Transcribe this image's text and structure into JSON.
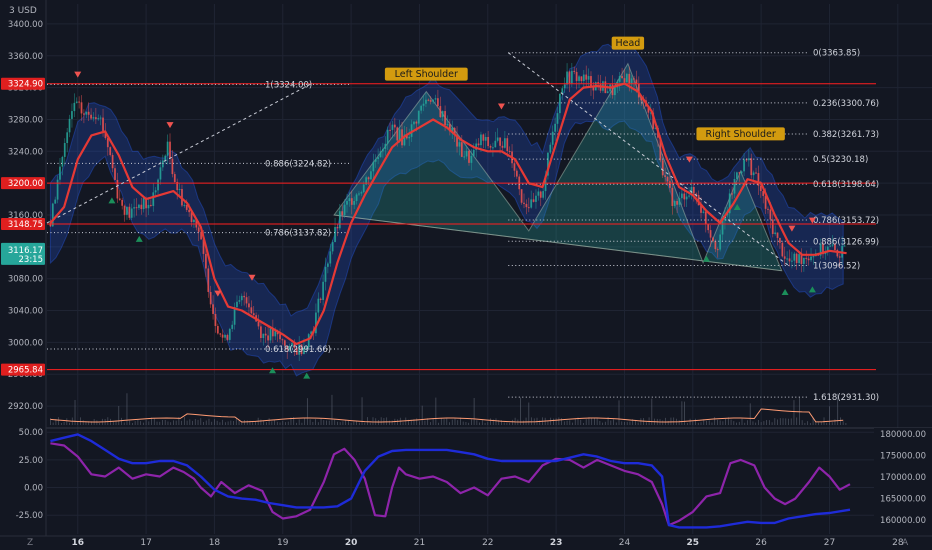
{
  "header": {
    "currency": "USD"
  },
  "colors": {
    "background": "#131722",
    "grid": "#1f2433",
    "candle_up": "#26a69a",
    "candle_down": "#ef5350",
    "ma": "#e53935",
    "band": "#2962ff",
    "hline": "#ff1f1f",
    "fib": "#c9ccd6",
    "volume": "#6a7180",
    "volume_ma": "#ff9b73",
    "osc_purple": "#8e24aa",
    "osc_blue": "#1e2bd8",
    "label_bg": "#d39b0f",
    "price_label_bg": "#e01f1f",
    "current_bg": "#26a69a"
  },
  "chart_data": [
    {
      "type": "candlestick",
      "x_ticks": [
        "16",
        "17",
        "18",
        "19",
        "20",
        "21",
        "22",
        "23",
        "24",
        "25",
        "26",
        "27",
        "28"
      ],
      "bold_x_ticks": [
        "16",
        "20",
        "23",
        "25"
      ],
      "xlim": [
        15.55,
        28.5
      ],
      "ylim": [
        2895,
        3425
      ],
      "y_ticks": [
        "3400.00",
        "3360.00",
        "3320.00",
        "3280.00",
        "3240.00",
        "3200.00",
        "3160.00",
        "3120.00",
        "3080.00",
        "3040.00",
        "3000.00",
        "2960.00",
        "2920.00"
      ],
      "close_path": [
        [
          15.6,
          3150
        ],
        [
          15.75,
          3225
        ],
        [
          15.95,
          3300
        ],
        [
          16.1,
          3285
        ],
        [
          16.3,
          3290
        ],
        [
          16.45,
          3245
        ],
        [
          16.6,
          3180
        ],
        [
          16.75,
          3160
        ],
        [
          16.9,
          3175
        ],
        [
          17.05,
          3170
        ],
        [
          17.2,
          3210
        ],
        [
          17.3,
          3250
        ],
        [
          17.45,
          3195
        ],
        [
          17.6,
          3165
        ],
        [
          17.75,
          3150
        ],
        [
          17.85,
          3100
        ],
        [
          18.0,
          3030
        ],
        [
          18.15,
          3000
        ],
        [
          18.3,
          3040
        ],
        [
          18.45,
          3060
        ],
        [
          18.55,
          3040
        ],
        [
          18.7,
          3010
        ],
        [
          18.85,
          3010
        ],
        [
          19.0,
          3000
        ],
        [
          19.15,
          2990
        ],
        [
          19.3,
          2995
        ],
        [
          19.45,
          3020
        ],
        [
          19.55,
          3060
        ],
        [
          19.7,
          3120
        ],
        [
          19.85,
          3160
        ],
        [
          20.0,
          3180
        ],
        [
          20.2,
          3200
        ],
        [
          20.4,
          3240
        ],
        [
          20.6,
          3270
        ],
        [
          20.75,
          3255
        ],
        [
          20.9,
          3270
        ],
        [
          21.05,
          3300
        ],
        [
          21.15,
          3310
        ],
        [
          21.3,
          3290
        ],
        [
          21.45,
          3270
        ],
        [
          21.6,
          3240
        ],
        [
          21.75,
          3230
        ],
        [
          21.9,
          3255
        ],
        [
          22.05,
          3245
        ],
        [
          22.2,
          3255
        ],
        [
          22.35,
          3235
        ],
        [
          22.5,
          3180
        ],
        [
          22.65,
          3170
        ],
        [
          22.8,
          3190
        ],
        [
          22.95,
          3265
        ],
        [
          23.1,
          3330
        ],
        [
          23.25,
          3335
        ],
        [
          23.4,
          3330
        ],
        [
          23.55,
          3325
        ],
        [
          23.7,
          3320
        ],
        [
          23.85,
          3315
        ],
        [
          24.0,
          3335
        ],
        [
          24.15,
          3325
        ],
        [
          24.3,
          3300
        ],
        [
          24.45,
          3270
        ],
        [
          24.6,
          3200
        ],
        [
          24.75,
          3170
        ],
        [
          24.9,
          3190
        ],
        [
          25.05,
          3185
        ],
        [
          25.2,
          3150
        ],
        [
          25.35,
          3120
        ],
        [
          25.5,
          3165
        ],
        [
          25.65,
          3215
        ],
        [
          25.8,
          3230
        ],
        [
          25.95,
          3200
        ],
        [
          26.1,
          3160
        ],
        [
          26.25,
          3125
        ],
        [
          26.4,
          3100
        ],
        [
          26.55,
          3105
        ],
        [
          26.7,
          3110
        ],
        [
          26.85,
          3115
        ],
        [
          27.0,
          3118
        ],
        [
          27.15,
          3112
        ],
        [
          27.25,
          3115
        ]
      ],
      "moving_average": [
        [
          15.6,
          3150
        ],
        [
          15.8,
          3170
        ],
        [
          16.0,
          3230
        ],
        [
          16.2,
          3260
        ],
        [
          16.4,
          3265
        ],
        [
          16.6,
          3235
        ],
        [
          16.8,
          3195
        ],
        [
          17.0,
          3180
        ],
        [
          17.2,
          3185
        ],
        [
          17.4,
          3190
        ],
        [
          17.6,
          3175
        ],
        [
          17.8,
          3145
        ],
        [
          18.0,
          3080
        ],
        [
          18.2,
          3045
        ],
        [
          18.4,
          3040
        ],
        [
          18.6,
          3030
        ],
        [
          18.8,
          3020
        ],
        [
          19.0,
          3010
        ],
        [
          19.2,
          2998
        ],
        [
          19.4,
          3005
        ],
        [
          19.6,
          3040
        ],
        [
          19.8,
          3100
        ],
        [
          20.0,
          3150
        ],
        [
          20.2,
          3185
        ],
        [
          20.4,
          3215
        ],
        [
          20.6,
          3245
        ],
        [
          20.8,
          3260
        ],
        [
          21.0,
          3270
        ],
        [
          21.2,
          3280
        ],
        [
          21.4,
          3270
        ],
        [
          21.6,
          3255
        ],
        [
          21.8,
          3245
        ],
        [
          22.0,
          3240
        ],
        [
          22.2,
          3240
        ],
        [
          22.4,
          3230
        ],
        [
          22.6,
          3200
        ],
        [
          22.8,
          3195
        ],
        [
          23.0,
          3250
        ],
        [
          23.2,
          3305
        ],
        [
          23.4,
          3320
        ],
        [
          23.6,
          3322
        ],
        [
          23.8,
          3320
        ],
        [
          24.0,
          3325
        ],
        [
          24.2,
          3315
        ],
        [
          24.4,
          3290
        ],
        [
          24.6,
          3235
        ],
        [
          24.8,
          3195
        ],
        [
          25.0,
          3185
        ],
        [
          25.2,
          3165
        ],
        [
          25.4,
          3150
        ],
        [
          25.6,
          3175
        ],
        [
          25.8,
          3205
        ],
        [
          26.0,
          3200
        ],
        [
          26.2,
          3160
        ],
        [
          26.4,
          3125
        ],
        [
          26.6,
          3110
        ],
        [
          26.8,
          3110
        ],
        [
          27.0,
          3115
        ],
        [
          27.25,
          3112
        ]
      ],
      "horizontal_levels": [
        3324.9,
        3200.0,
        3148.75,
        2965.84
      ],
      "price_labels": [
        {
          "value": 3324.9,
          "text": "3324.90"
        },
        {
          "value": 3200.0,
          "text": "3200.00"
        },
        {
          "value": 3148.75,
          "text": "3148.75"
        },
        {
          "value": 2965.84,
          "text": "2965.84"
        }
      ],
      "current_price": {
        "value": 3116.17,
        "text": "3116.17",
        "countdown": "23:15"
      },
      "fib_retracement_left": {
        "x_range": [
          15.55,
          20.0
        ],
        "levels": [
          {
            "label": "1(3324.00)",
            "value": 3324.0
          },
          {
            "label": "0.886(3224.82)",
            "value": 3224.82
          },
          {
            "label": "0.786(3137.82)",
            "value": 3137.82
          },
          {
            "label": "0.618(2991.66)",
            "value": 2991.66
          }
        ]
      },
      "fib_retracement_right": {
        "x_range": [
          22.3,
          26.7
        ],
        "levels": [
          {
            "label": "0(3363.85)",
            "value": 3363.85
          },
          {
            "label": "0.236(3300.76)",
            "value": 3300.76
          },
          {
            "label": "0.382(3261.73)",
            "value": 3261.73
          },
          {
            "label": "0.5(3230.18)",
            "value": 3230.18
          },
          {
            "label": "0.618(3198.64)",
            "value": 3198.64
          },
          {
            "label": "0.786(3153.72)",
            "value": 3153.72
          },
          {
            "label": "0.886(3126.99)",
            "value": 3126.99
          },
          {
            "label": "1(3096.52)",
            "value": 3096.52
          },
          {
            "label": "1.618(2931.30)",
            "value": 2931.3
          }
        ]
      },
      "annotations": [
        {
          "text": "Left Shoulder",
          "x": 21.1,
          "y": 3330
        },
        {
          "text": "Head",
          "x": 24.05,
          "y": 3369
        },
        {
          "text": "Right Shoulder",
          "x": 25.7,
          "y": 3255
        }
      ],
      "head_shoulders_polygon": [
        [
          19.75,
          3160
        ],
        [
          21.1,
          3315
        ],
        [
          22.6,
          3140
        ],
        [
          24.05,
          3350
        ],
        [
          25.15,
          3100
        ],
        [
          25.7,
          3215
        ],
        [
          26.3,
          3090
        ]
      ],
      "sell_signals": [
        16.0,
        17.35,
        18.05,
        18.55,
        22.2,
        24.95,
        26.45,
        26.75
      ],
      "buy_signals": [
        16.5,
        16.9,
        18.85,
        19.35,
        25.2,
        25.65,
        26.35,
        26.75
      ]
    },
    {
      "type": "line",
      "name": "oscillator",
      "ylim": [
        -42,
        52
      ],
      "y_ticks": [
        "50.00",
        "25.00",
        "0.00",
        "-25.00"
      ],
      "right_ticks": [
        "180000.00",
        "175000.00",
        "170000.00",
        "165000.00",
        "160000.00"
      ],
      "purple": [
        [
          15.6,
          40
        ],
        [
          15.8,
          38
        ],
        [
          16.0,
          28
        ],
        [
          16.2,
          12
        ],
        [
          16.4,
          10
        ],
        [
          16.6,
          18
        ],
        [
          16.8,
          8
        ],
        [
          17.0,
          12
        ],
        [
          17.2,
          10
        ],
        [
          17.4,
          18
        ],
        [
          17.55,
          14
        ],
        [
          17.7,
          8
        ],
        [
          17.8,
          0
        ],
        [
          17.95,
          -8
        ],
        [
          18.1,
          5
        ],
        [
          18.3,
          -5
        ],
        [
          18.5,
          2
        ],
        [
          18.7,
          -3
        ],
        [
          18.85,
          -22
        ],
        [
          19.0,
          -28
        ],
        [
          19.2,
          -26
        ],
        [
          19.4,
          -20
        ],
        [
          19.6,
          5
        ],
        [
          19.75,
          30
        ],
        [
          19.9,
          35
        ],
        [
          20.05,
          25
        ],
        [
          20.2,
          8
        ],
        [
          20.35,
          -25
        ],
        [
          20.5,
          -26
        ],
        [
          20.6,
          0
        ],
        [
          20.7,
          18
        ],
        [
          20.8,
          12
        ],
        [
          21.0,
          8
        ],
        [
          21.2,
          10
        ],
        [
          21.4,
          5
        ],
        [
          21.6,
          -5
        ],
        [
          21.8,
          0
        ],
        [
          22.0,
          -7
        ],
        [
          22.2,
          8
        ],
        [
          22.4,
          10
        ],
        [
          22.6,
          5
        ],
        [
          22.8,
          20
        ],
        [
          23.0,
          26
        ],
        [
          23.2,
          25
        ],
        [
          23.4,
          18
        ],
        [
          23.6,
          25
        ],
        [
          23.8,
          20
        ],
        [
          24.0,
          15
        ],
        [
          24.2,
          12
        ],
        [
          24.4,
          5
        ],
        [
          24.55,
          -15
        ],
        [
          24.65,
          -34
        ],
        [
          24.8,
          -30
        ],
        [
          25.0,
          -22
        ],
        [
          25.2,
          -8
        ],
        [
          25.4,
          -5
        ],
        [
          25.55,
          22
        ],
        [
          25.7,
          25
        ],
        [
          25.9,
          20
        ],
        [
          26.05,
          0
        ],
        [
          26.2,
          -10
        ],
        [
          26.35,
          -15
        ],
        [
          26.5,
          -10
        ],
        [
          26.7,
          5
        ],
        [
          26.85,
          18
        ],
        [
          27.0,
          10
        ],
        [
          27.15,
          -2
        ],
        [
          27.3,
          3
        ]
      ],
      "blue": [
        [
          15.6,
          42
        ],
        [
          15.8,
          45
        ],
        [
          16.0,
          48
        ],
        [
          16.2,
          42
        ],
        [
          16.4,
          34
        ],
        [
          16.6,
          26
        ],
        [
          16.8,
          22
        ],
        [
          17.0,
          22
        ],
        [
          17.2,
          24
        ],
        [
          17.4,
          24
        ],
        [
          17.6,
          20
        ],
        [
          17.8,
          10
        ],
        [
          18.0,
          -2
        ],
        [
          18.2,
          -8
        ],
        [
          18.4,
          -10
        ],
        [
          18.6,
          -11
        ],
        [
          18.8,
          -14
        ],
        [
          19.0,
          -16
        ],
        [
          19.2,
          -18
        ],
        [
          19.4,
          -18
        ],
        [
          19.6,
          -18
        ],
        [
          19.8,
          -17
        ],
        [
          20.0,
          -10
        ],
        [
          20.2,
          15
        ],
        [
          20.4,
          28
        ],
        [
          20.6,
          33
        ],
        [
          20.8,
          34
        ],
        [
          21.0,
          34
        ],
        [
          21.2,
          34
        ],
        [
          21.4,
          34
        ],
        [
          21.6,
          32
        ],
        [
          21.8,
          30
        ],
        [
          22.0,
          26
        ],
        [
          22.2,
          24
        ],
        [
          22.4,
          24
        ],
        [
          22.6,
          24
        ],
        [
          22.8,
          24
        ],
        [
          23.0,
          24
        ],
        [
          23.2,
          27
        ],
        [
          23.4,
          30
        ],
        [
          23.6,
          28
        ],
        [
          23.8,
          24
        ],
        [
          24.0,
          22
        ],
        [
          24.2,
          22
        ],
        [
          24.4,
          20
        ],
        [
          24.55,
          10
        ],
        [
          24.65,
          -34
        ],
        [
          24.8,
          -36
        ],
        [
          25.0,
          -36
        ],
        [
          25.2,
          -36
        ],
        [
          25.4,
          -35
        ],
        [
          25.6,
          -33
        ],
        [
          25.8,
          -31
        ],
        [
          26.0,
          -32
        ],
        [
          26.2,
          -32
        ],
        [
          26.4,
          -28
        ],
        [
          26.6,
          -26
        ],
        [
          26.8,
          -24
        ],
        [
          27.0,
          -23
        ],
        [
          27.3,
          -20
        ]
      ]
    }
  ]
}
